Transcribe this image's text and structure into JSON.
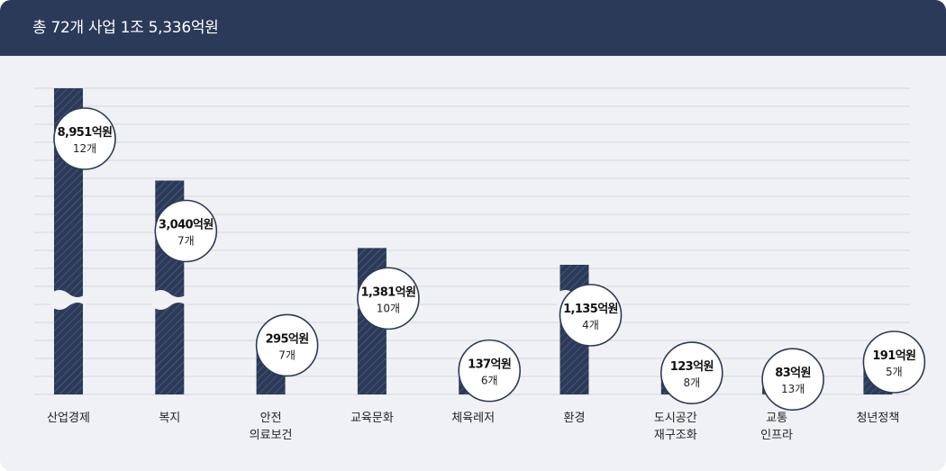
{
  "header": {
    "title": "총 72개 사업 1조 5,336억원"
  },
  "colors": {
    "header_bg": "#2b3a58",
    "bar": "#2b3a58",
    "bar_stripe": "#465775",
    "grid": "#d4d7de",
    "panel_bg": "#f0f1f5",
    "bubble_border": "#2b3a58"
  },
  "chart_data": {
    "type": "bar",
    "title": "",
    "xlabel": "",
    "ylabel": "",
    "axis_break": true,
    "grid": true,
    "categories": [
      [
        "산업경제"
      ],
      [
        "복지"
      ],
      [
        "안전",
        "의료보건"
      ],
      [
        "교육문화"
      ],
      [
        "체육레저"
      ],
      [
        "환경"
      ],
      [
        "도시공간",
        "재구조화"
      ],
      [
        "교통",
        "인프라"
      ],
      [
        "청년정책"
      ]
    ],
    "values": [
      8951,
      3040,
      295,
      1381,
      137,
      1135,
      123,
      83,
      191
    ],
    "counts": [
      12,
      7,
      7,
      10,
      6,
      4,
      8,
      13,
      5
    ],
    "value_labels": [
      "8,951억원",
      "3,040억원",
      "295억원",
      "1,381억원",
      "137억원",
      "1,135억원",
      "123억원",
      "83억원",
      "191억원"
    ],
    "count_labels": [
      "12개",
      "7개",
      "7개",
      "10개",
      "6개",
      "4개",
      "8개",
      "13개",
      "5개"
    ],
    "broken_bars": [
      true,
      true,
      false,
      true,
      false,
      true,
      false,
      false,
      false
    ]
  }
}
